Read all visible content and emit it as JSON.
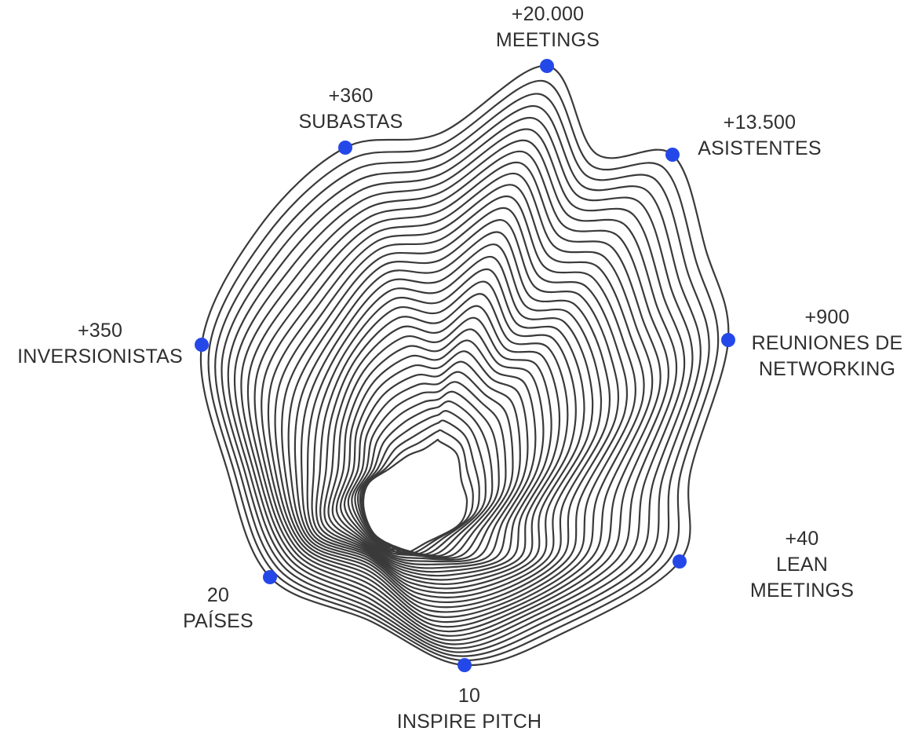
{
  "stats": [
    {
      "id": "meetings",
      "value": "+20.000",
      "line1": "MEETINGS",
      "line2": ""
    },
    {
      "id": "asistentes",
      "value": "+13.500",
      "line1": "ASISTENTES",
      "line2": ""
    },
    {
      "id": "networking",
      "value": "+900",
      "line1": "REUNIONES DE",
      "line2": "NETWORKING"
    },
    {
      "id": "lean",
      "value": "+40",
      "line1": "LEAN",
      "line2": "MEETINGS"
    },
    {
      "id": "inspire",
      "value": "10",
      "line1": "INSPIRE PITCH",
      "line2": ""
    },
    {
      "id": "paises",
      "value": "20",
      "line1": "PAÍSES",
      "line2": ""
    },
    {
      "id": "inversionistas",
      "value": "+350",
      "line1": "INVERSIONISTAS",
      "line2": ""
    },
    {
      "id": "subastas",
      "value": "+360",
      "line1": "SUBASTAS",
      "line2": ""
    }
  ],
  "colors": {
    "marker": "#2448e8",
    "contour": "#3a3a3a",
    "text": "#2f2f2f"
  }
}
